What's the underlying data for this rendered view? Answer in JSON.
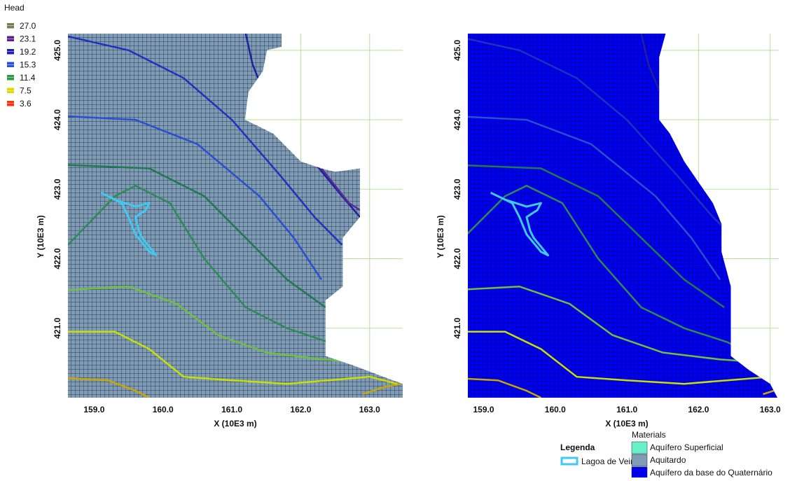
{
  "chart_data": [
    {
      "type": "contour",
      "x_label": "X (10E3 m)",
      "y_label": "Y (10E3 m)",
      "xlim": [
        158.62,
        163.48
      ],
      "ylim": [
        420.0,
        425.24
      ],
      "xticks": [
        {
          "value": 159,
          "label": "159.0"
        },
        {
          "value": 160,
          "label": "160.0"
        },
        {
          "value": 161,
          "label": "161.0"
        },
        {
          "value": 162,
          "label": "162.0"
        },
        {
          "value": 163,
          "label": "163.0"
        }
      ],
      "yticks": [
        {
          "value": 421,
          "label": "421.0"
        },
        {
          "value": 422,
          "label": "422.0"
        },
        {
          "value": 423,
          "label": "423.0"
        },
        {
          "value": 424,
          "label": "424.0"
        },
        {
          "value": 425,
          "label": "425.0"
        }
      ],
      "grid": true
    },
    {
      "type": "contour",
      "x_label": "X (10E3 m)",
      "y_label": "Y (10E3 m)",
      "xlim": [
        158.78,
        163.12
      ],
      "ylim": [
        420.0,
        425.24
      ],
      "xticks": [
        {
          "value": 159,
          "label": "159.0"
        },
        {
          "value": 160,
          "label": "160.0"
        },
        {
          "value": 161,
          "label": "161.0"
        },
        {
          "value": 162,
          "label": "162.0"
        },
        {
          "value": 163,
          "label": "163.0"
        }
      ],
      "yticks": [
        {
          "value": 421,
          "label": "421.0"
        },
        {
          "value": 422,
          "label": "422.0"
        },
        {
          "value": 423,
          "label": "423.0"
        },
        {
          "value": 424,
          "label": "424.0"
        },
        {
          "value": 425,
          "label": "425.0"
        }
      ],
      "grid": true
    }
  ],
  "head_legend": {
    "title": "Head",
    "levels": [
      {
        "value": 27,
        "label": "27.0"
      },
      {
        "value": 23.1,
        "label": "23.1"
      },
      {
        "value": 19.2,
        "label": "19.2"
      },
      {
        "value": 15.3,
        "label": "15.3"
      },
      {
        "value": 11.4,
        "label": "11.4"
      },
      {
        "value": 7.5,
        "label": "7.5"
      },
      {
        "value": 3.6,
        "label": "3.6"
      }
    ],
    "colors": [
      "#7d7a55",
      "#5a2090",
      "#2020b0",
      "#2850d8",
      "#2e9a48",
      "#e0d800",
      "#ff3010"
    ]
  },
  "lake_legend": {
    "title": "Legenda",
    "items": [
      {
        "name": "Lagoa de Veiros",
        "color": "#40c8f0"
      }
    ]
  },
  "materials_legend": {
    "title": "Materials",
    "items": [
      {
        "name": "Aquífero Superficial",
        "color": "#66f0c8"
      },
      {
        "name": "Aquitardo",
        "color": "#7f9bb5"
      },
      {
        "name": "Aquífero da base do Quaternário",
        "color": "#0000f0"
      }
    ]
  }
}
